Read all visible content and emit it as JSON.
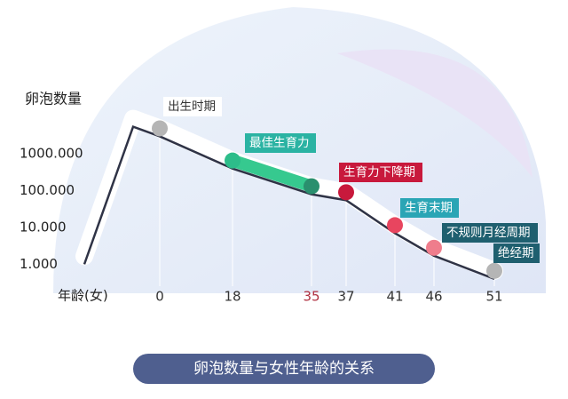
{
  "chart_data": {
    "type": "line",
    "title": "卵泡数量与女性年龄的关系",
    "y_label": "卵泡数量",
    "x_label": "年龄(女)",
    "categories": [
      null,
      null,
      "0",
      "18",
      "35",
      "37",
      "41",
      "46",
      "51"
    ],
    "values": [
      1,
      5500,
      3000,
      400,
      80,
      55,
      7,
      1.7,
      0.4
    ],
    "color": "#2f3346",
    "log_scale": true,
    "ylim": [
      0.3,
      6000
    ],
    "yticks": [
      {
        "value": 1000,
        "label": "1000.000"
      },
      {
        "value": 100,
        "label": "100.000"
      },
      {
        "value": 10,
        "label": "10.000"
      },
      {
        "value": 1,
        "label": "1.000"
      }
    ],
    "point_colors": [
      null,
      null,
      "#b5b5b5",
      "#2dbd8a",
      "#2a8f6e",
      "#c8193c",
      "#e8455f",
      "#ef7d8c",
      "#b5b5b5"
    ],
    "x_tick_colors": [
      null,
      null,
      "#333333",
      "#333333",
      "#b03040",
      "#333333",
      "#333333",
      "#333333",
      "#333333"
    ],
    "highlight_span_color": "#36c98f",
    "annotations": [
      {
        "text": "出生时期",
        "color": "#ffffff",
        "text_color": "#333333"
      },
      {
        "text": "最佳生育力",
        "color": "#2bb3a3",
        "text_color": "#ffffff"
      },
      {
        "text": "生育力下降期",
        "color": "#c8193c",
        "text_color": "#ffffff"
      },
      {
        "text": "生育末期",
        "color": "#2aa5b5",
        "text_color": "#ffffff"
      },
      {
        "text": "不规则月经周期",
        "color": "#1f5f6f",
        "text_color": "#ffffff"
      },
      {
        "text": "绝经期",
        "color": "#1f5f6f",
        "text_color": "#ffffff"
      }
    ]
  }
}
